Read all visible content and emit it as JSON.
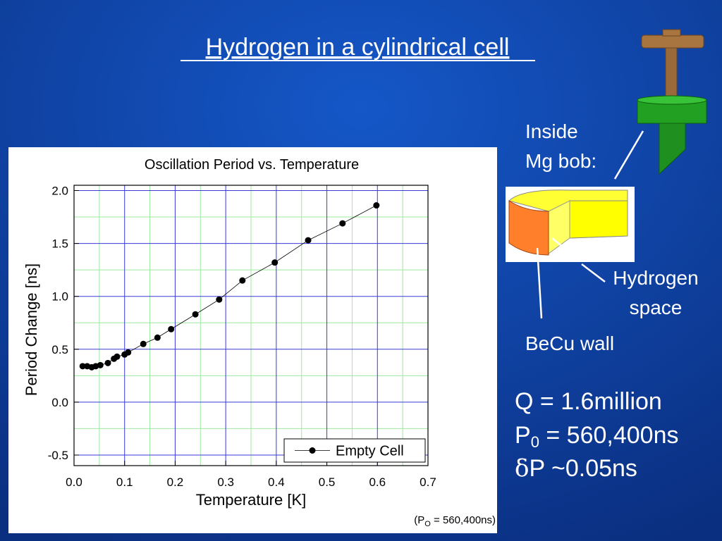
{
  "title": "Hydrogen in a cylindrical cell",
  "chart_data": {
    "type": "line",
    "title": "Oscillation Period vs. Temperature",
    "x_label": "Temperature [K]",
    "y_label": "Period Change [ns]",
    "xlim": [
      0,
      0.7
    ],
    "ylim": [
      -0.6,
      2.05
    ],
    "xticks": [
      {
        "value": 0,
        "label": "0.0"
      },
      0.1,
      0.2,
      0.3,
      0.4,
      0.5,
      0.6,
      0.7
    ],
    "yticks": [
      {
        "value": -0.5,
        "label": "-0.5"
      },
      {
        "value": 0,
        "label": "0.0"
      },
      0.5,
      {
        "value": 1,
        "label": "1.0"
      },
      1.5,
      {
        "value": 2,
        "label": "2.0"
      }
    ],
    "grid": true,
    "minor_grid": true,
    "grid_color": "#3a3ad8",
    "minor_grid_color": "#9ee89e",
    "legend": "lower right",
    "series": [
      {
        "name": "Empty Cell",
        "color": "#000000",
        "x": [
          0.017,
          0.026,
          0.035,
          0.043,
          0.052,
          0.067,
          0.079,
          0.085,
          0.1,
          0.107,
          0.137,
          0.165,
          0.192,
          0.24,
          0.287,
          0.333,
          0.397,
          0.463,
          0.531,
          0.598
        ],
        "values": [
          0.34,
          0.34,
          0.33,
          0.34,
          0.35,
          0.37,
          0.41,
          0.43,
          0.45,
          0.47,
          0.55,
          0.61,
          0.69,
          0.83,
          0.97,
          1.15,
          1.32,
          1.53,
          1.69,
          1.86
        ]
      }
    ],
    "note": {
      "prefix": "(P",
      "sub": "O",
      "suffix": " = 560,400ns)"
    }
  },
  "labels": {
    "inside": [
      "Inside",
      "Mg bob:"
    ],
    "hydrogen": [
      "Hydrogen",
      "space"
    ],
    "becu": "BeCu wall"
  },
  "params": {
    "q": "Q = 1.6million",
    "p0": {
      "prefix": "P",
      "sub": "0",
      "suffix": " = 560,400ns"
    },
    "dp": {
      "symbol": "δ",
      "text": "P ~0.05ns"
    }
  }
}
